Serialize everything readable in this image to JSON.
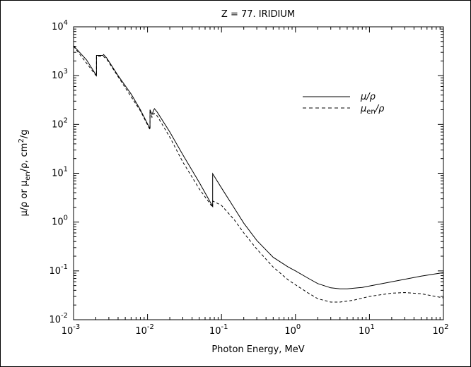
{
  "chart_data": {
    "type": "line",
    "title": "Z = 77.  IRIDIUM",
    "xlabel": "Photon Energy, MeV",
    "ylabel": {
      "part1": "μ/ρ or μ",
      "sub": "en",
      "part2": "/ρ, cm",
      "sup": "2",
      "part3": "/g"
    },
    "xscale": "log",
    "yscale": "log",
    "xlim": [
      0.001,
      100
    ],
    "ylim": [
      0.01,
      10000
    ],
    "x_ticks": [
      {
        "base": "10",
        "exp": "-3",
        "value": 0.001
      },
      {
        "base": "10",
        "exp": "-2",
        "value": 0.01
      },
      {
        "base": "10",
        "exp": "-1",
        "value": 0.1
      },
      {
        "base": "10",
        "exp": "0",
        "value": 1
      },
      {
        "base": "10",
        "exp": "1",
        "value": 10
      },
      {
        "base": "10",
        "exp": "2",
        "value": 100
      }
    ],
    "y_ticks": [
      {
        "base": "10",
        "exp": "-2",
        "value": 0.01
      },
      {
        "base": "10",
        "exp": "-1",
        "value": 0.1
      },
      {
        "base": "10",
        "exp": "0",
        "value": 1
      },
      {
        "base": "10",
        "exp": "1",
        "value": 10
      },
      {
        "base": "10",
        "exp": "2",
        "value": 100
      },
      {
        "base": "10",
        "exp": "3",
        "value": 1000
      },
      {
        "base": "10",
        "exp": "4",
        "value": 10000
      }
    ],
    "legend_position": "top-right",
    "series": [
      {
        "name": "μ/ρ",
        "legend_main": "μ/ρ",
        "style": "solid",
        "points": [
          [
            0.001,
            4100
          ],
          [
            0.0015,
            2100
          ],
          [
            0.00204,
            1000
          ],
          [
            0.00204,
            2600
          ],
          [
            0.0025,
            2600
          ],
          [
            0.00255,
            2700
          ],
          [
            0.0028,
            2300
          ],
          [
            0.004,
            1000
          ],
          [
            0.006,
            420
          ],
          [
            0.008,
            200
          ],
          [
            0.0108,
            82
          ],
          [
            0.0108,
            200
          ],
          [
            0.0115,
            160
          ],
          [
            0.0122,
            200
          ],
          [
            0.0124,
            210
          ],
          [
            0.0135,
            180
          ],
          [
            0.02,
            70
          ],
          [
            0.03,
            24
          ],
          [
            0.05,
            6.5
          ],
          [
            0.076,
            2.1
          ],
          [
            0.076,
            9.8
          ],
          [
            0.1,
            5.0
          ],
          [
            0.15,
            1.9
          ],
          [
            0.2,
            0.95
          ],
          [
            0.3,
            0.42
          ],
          [
            0.5,
            0.19
          ],
          [
            0.8,
            0.12
          ],
          [
            1,
            0.1
          ],
          [
            1.5,
            0.07
          ],
          [
            2,
            0.055
          ],
          [
            3,
            0.045
          ],
          [
            4,
            0.043
          ],
          [
            5,
            0.043
          ],
          [
            8,
            0.046
          ],
          [
            10,
            0.049
          ],
          [
            20,
            0.06
          ],
          [
            50,
            0.078
          ],
          [
            100,
            0.092
          ]
        ]
      },
      {
        "name": "μen/ρ",
        "legend_main": "μ",
        "legend_sub": "en",
        "legend_tail": "/ρ",
        "style": "dashed",
        "points": [
          [
            0.001,
            4000
          ],
          [
            0.00204,
            980
          ],
          [
            0.00204,
            2500
          ],
          [
            0.0025,
            2500
          ],
          [
            0.0028,
            2200
          ],
          [
            0.004,
            950
          ],
          [
            0.008,
            190
          ],
          [
            0.0108,
            78
          ],
          [
            0.0108,
            180
          ],
          [
            0.0115,
            140
          ],
          [
            0.0122,
            170
          ],
          [
            0.0135,
            150
          ],
          [
            0.02,
            55
          ],
          [
            0.03,
            17
          ],
          [
            0.05,
            4.8
          ],
          [
            0.076,
            2.0
          ],
          [
            0.076,
            2.7
          ],
          [
            0.1,
            2.2
          ],
          [
            0.15,
            1.1
          ],
          [
            0.2,
            0.6
          ],
          [
            0.3,
            0.28
          ],
          [
            0.5,
            0.12
          ],
          [
            0.8,
            0.065
          ],
          [
            1,
            0.052
          ],
          [
            1.5,
            0.035
          ],
          [
            2,
            0.027
          ],
          [
            3,
            0.023
          ],
          [
            4,
            0.023
          ],
          [
            6,
            0.025
          ],
          [
            10,
            0.03
          ],
          [
            20,
            0.035
          ],
          [
            30,
            0.036
          ],
          [
            50,
            0.034
          ],
          [
            100,
            0.028
          ]
        ]
      }
    ]
  }
}
